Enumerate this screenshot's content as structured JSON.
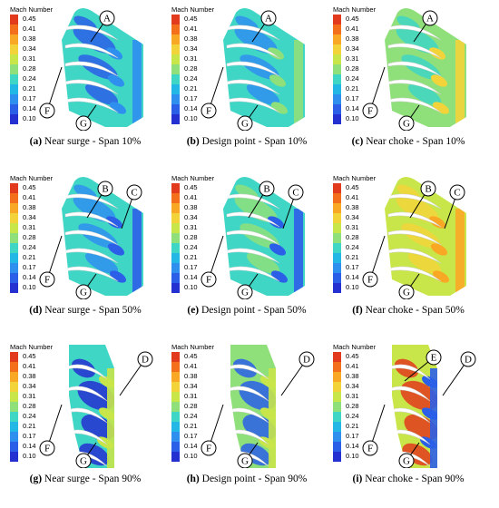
{
  "colorbar": {
    "title": "Mach Number",
    "ticks": [
      "0.45",
      "0.41",
      "0.38",
      "0.34",
      "0.31",
      "0.28",
      "0.24",
      "0.21",
      "0.17",
      "0.14",
      "0.10"
    ],
    "colors": [
      "#e23a1c",
      "#f46f1b",
      "#f9a825",
      "#f2d43a",
      "#c8e64a",
      "#8fe07a",
      "#3fd6c6",
      "#23b7e6",
      "#2f8fef",
      "#2c5fe8",
      "#2430d0"
    ]
  },
  "panels": [
    {
      "tag": "(a)",
      "text": "Near surge - Span 10%",
      "callouts": [
        "A",
        "F",
        "G"
      ],
      "bg": "#3fd6c6",
      "blob": "#2c5fe8",
      "hot": "#2f8fef"
    },
    {
      "tag": "(b)",
      "text": "Design point - Span 10%",
      "callouts": [
        "A",
        "F",
        "G"
      ],
      "bg": "#3fd6c6",
      "blob": "#2f8fef",
      "hot": "#8fe07a"
    },
    {
      "tag": "(c)",
      "text": "Near choke - Span 10%",
      "callouts": [
        "A",
        "F",
        "G"
      ],
      "bg": "#8fe07a",
      "blob": "#3fd6c6",
      "hot": "#f2d43a"
    },
    {
      "tag": "(d)",
      "text": "Near surge - Span 50%",
      "callouts": [
        "B",
        "C",
        "F",
        "G"
      ],
      "bg": "#3fd6c6",
      "blob": "#2f8fef",
      "hot": "#2c5fe8"
    },
    {
      "tag": "(e)",
      "text": "Design point - Span 50%",
      "callouts": [
        "B",
        "C",
        "F",
        "G"
      ],
      "bg": "#3fd6c6",
      "blob": "#8fe07a",
      "hot": "#2c5fe8"
    },
    {
      "tag": "(f)",
      "text": "Near choke - Span 50%",
      "callouts": [
        "B",
        "C",
        "F",
        "G"
      ],
      "bg": "#c8e64a",
      "blob": "#f2d43a",
      "hot": "#f9a825"
    },
    {
      "tag": "(g)",
      "text": "Near surge - Span 90%",
      "callouts": [
        "D",
        "F",
        "G"
      ],
      "bg": "#3fd6c6",
      "blob": "#2430d0",
      "hot": "#c8e64a"
    },
    {
      "tag": "(h)",
      "text": "Design point - Span 90%",
      "callouts": [
        "D",
        "F",
        "G"
      ],
      "bg": "#8fe07a",
      "blob": "#2c5fe8",
      "hot": "#c8e64a"
    },
    {
      "tag": "(i)",
      "text": "Near choke - Span 90%",
      "callouts": [
        "E",
        "D",
        "F",
        "G"
      ],
      "bg": "#c8e64a",
      "blob": "#e23a1c",
      "hot": "#2c5fe8"
    }
  ]
}
